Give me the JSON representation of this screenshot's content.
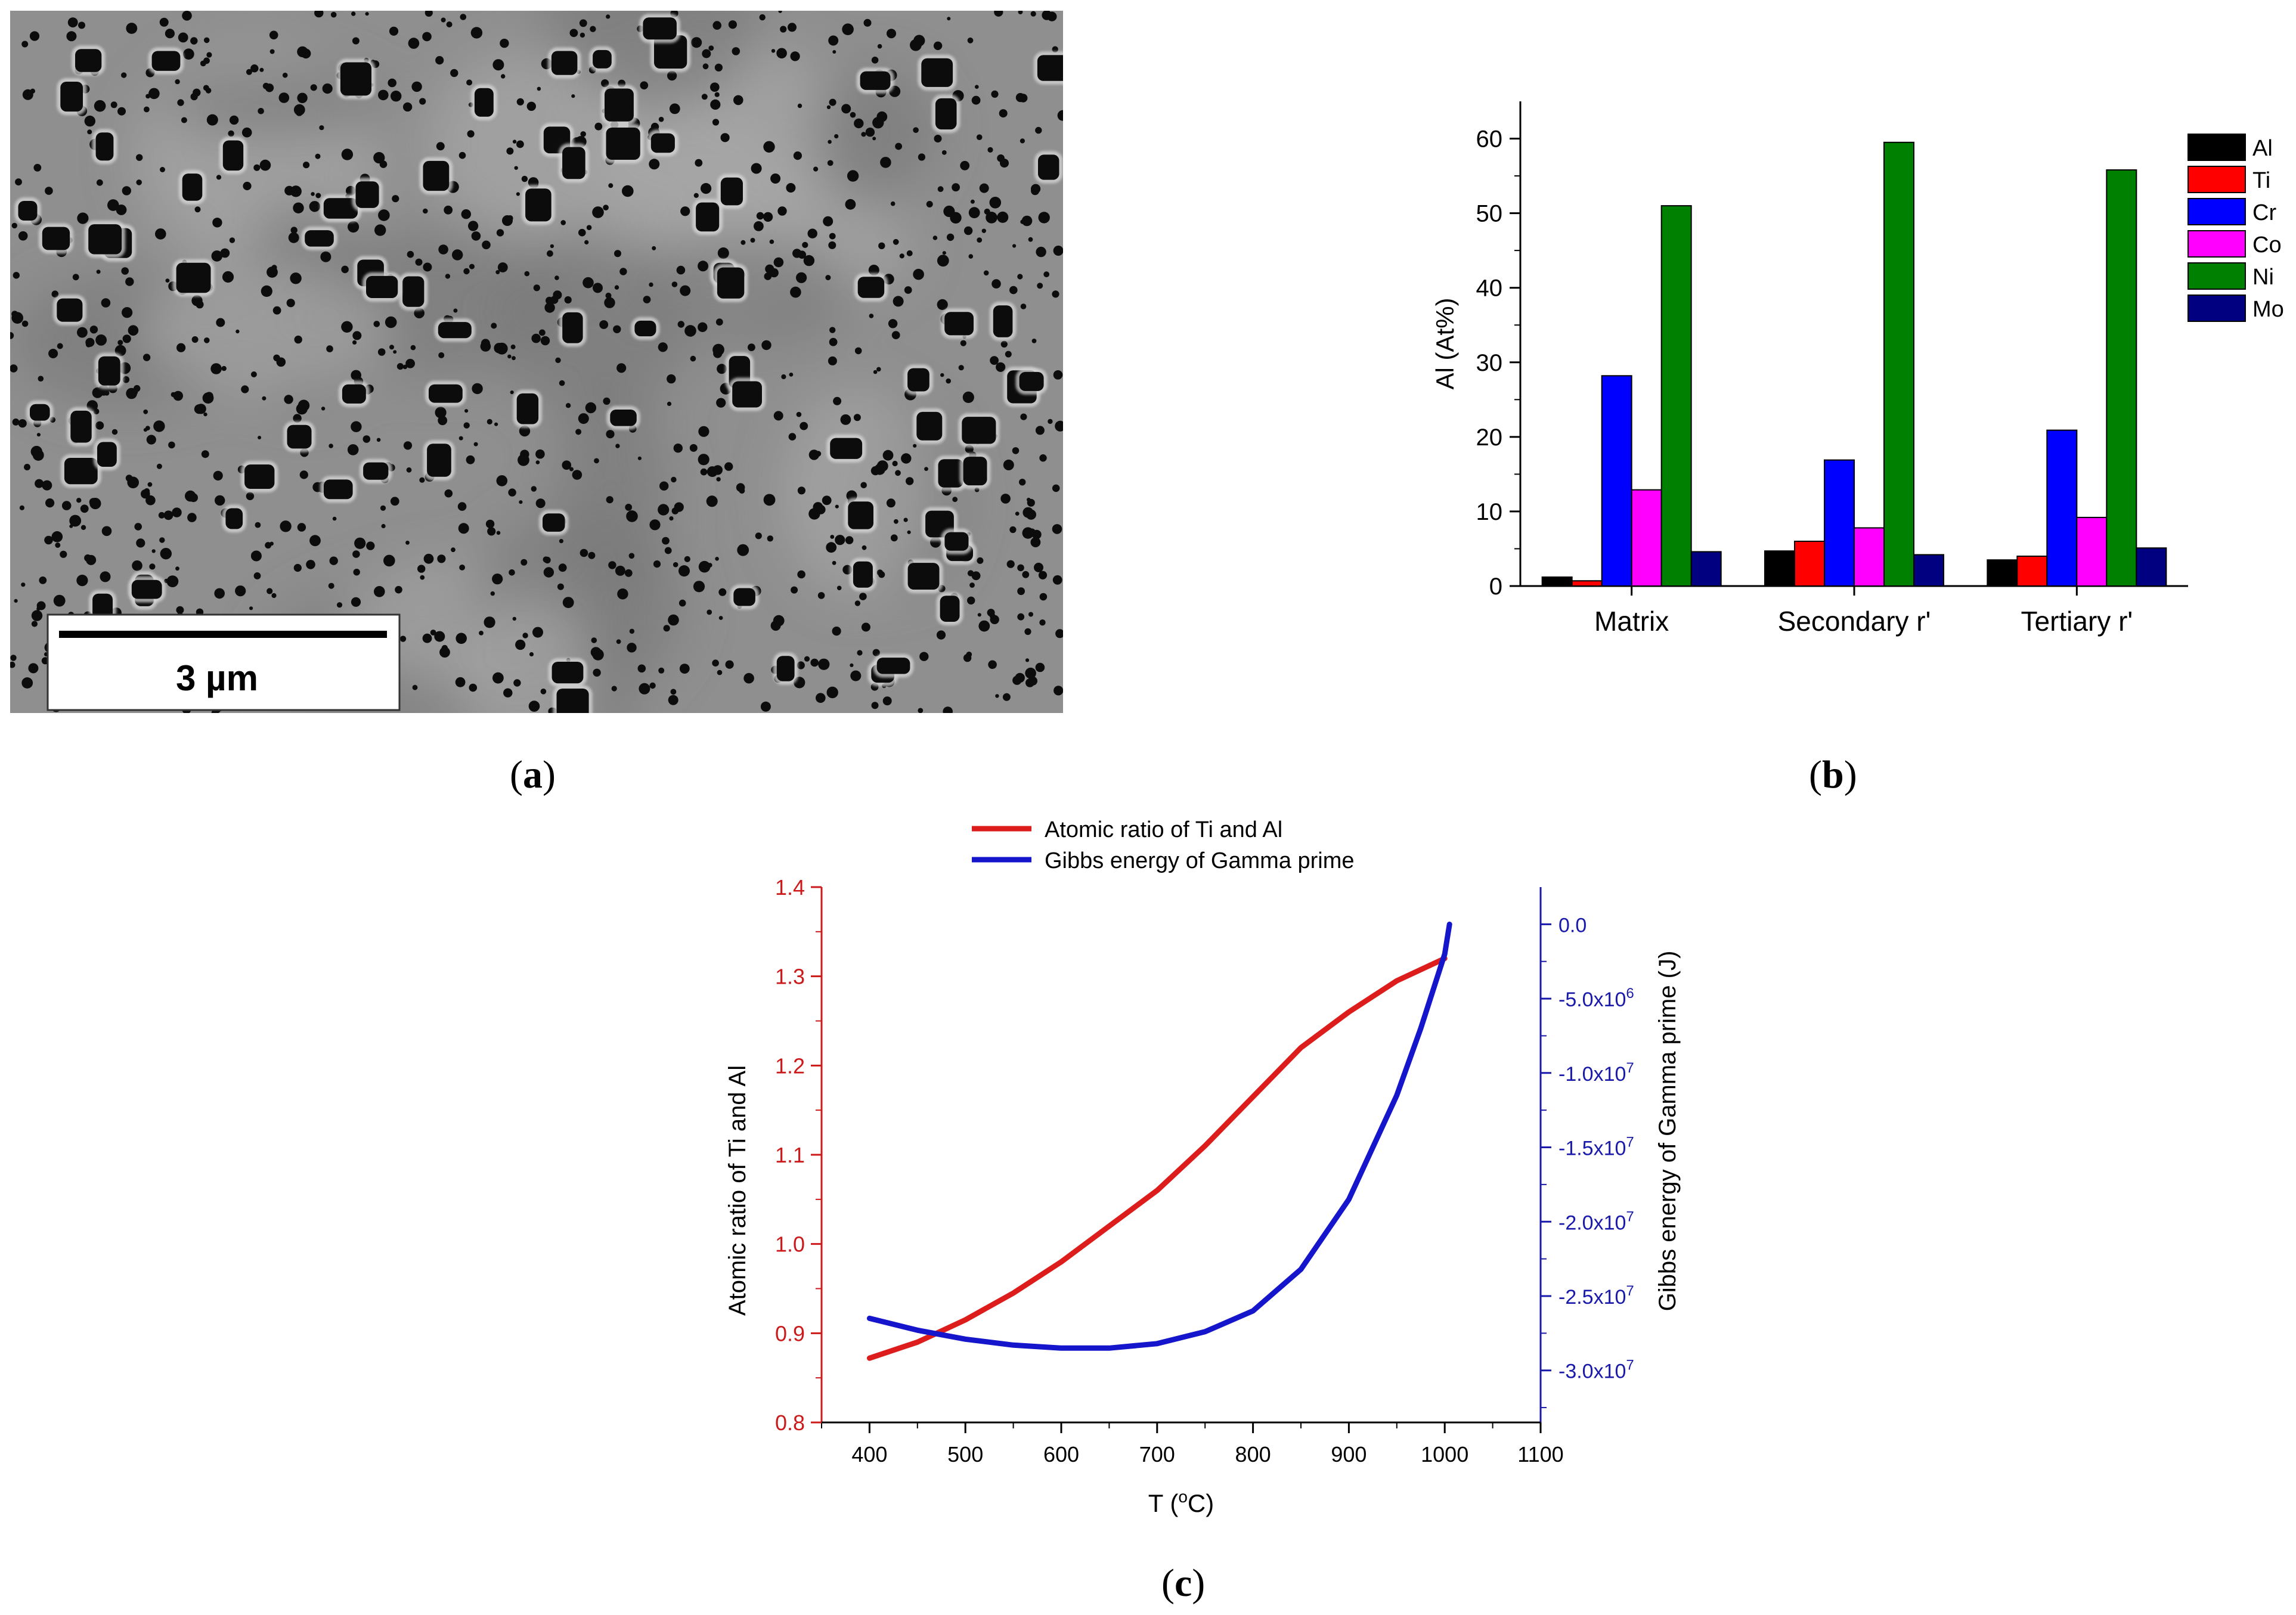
{
  "panels": {
    "a": {
      "open": "(",
      "letter": "a",
      "close": ")"
    },
    "b": {
      "open": "(",
      "letter": "b",
      "close": ")"
    },
    "c": {
      "open": "(",
      "letter": "c",
      "close": ")"
    }
  },
  "micrograph": {
    "scale_bar_label": "3 µm",
    "background_color": "#8f8f8f",
    "particle_color": "#0c0c0c"
  },
  "chart_data": [
    {
      "type": "bar",
      "ylabel": "Al (At%)",
      "ylim": [
        0,
        65
      ],
      "yticks": [
        0,
        10,
        20,
        30,
        40,
        50,
        60
      ],
      "categories": [
        "Matrix",
        "Secondary r'",
        "Tertiary r'"
      ],
      "legend_position": "top-right",
      "series": [
        {
          "name": "Al",
          "color": "#000000",
          "values": [
            1.2,
            4.7,
            3.5
          ]
        },
        {
          "name": "Ti",
          "color": "#ff0000",
          "values": [
            0.7,
            6.0,
            4.0
          ]
        },
        {
          "name": "Cr",
          "color": "#0000ff",
          "values": [
            28.2,
            16.9,
            20.9
          ]
        },
        {
          "name": "Co",
          "color": "#ff00ff",
          "values": [
            12.9,
            7.8,
            9.2
          ]
        },
        {
          "name": "Ni",
          "color": "#008000",
          "values": [
            51.0,
            59.5,
            55.8
          ]
        },
        {
          "name": "Mo",
          "color": "#000080",
          "values": [
            4.6,
            4.2,
            5.1
          ]
        }
      ]
    },
    {
      "type": "line",
      "xlabel_prefix": "T (",
      "xlabel_sup": "o",
      "xlabel_suffix": "C)",
      "xlim": [
        350,
        1100
      ],
      "xticks": [
        400,
        500,
        600,
        700,
        800,
        900,
        1000,
        1100
      ],
      "y_left": {
        "label": "Atomic ratio of Ti and Al",
        "color": "#cc1a1a",
        "ylim": [
          0.8,
          1.4
        ],
        "ticks": [
          "0.8",
          "0.9",
          "1.0",
          "1.1",
          "1.2",
          "1.3",
          "1.4"
        ]
      },
      "y_right": {
        "label": "Gibbs energy of Gamma prime (J)",
        "color": "#1a1aaa",
        "ylim": [
          -33500000,
          2500000
        ],
        "ticks": [
          {
            "value": 0,
            "mant": "0.0",
            "exp": ""
          },
          {
            "value": -5000000,
            "mant": "-5.0x10",
            "exp": "6"
          },
          {
            "value": -10000000,
            "mant": "-1.0x10",
            "exp": "7"
          },
          {
            "value": -15000000,
            "mant": "-1.5x10",
            "exp": "7"
          },
          {
            "value": -20000000,
            "mant": "-2.0x10",
            "exp": "7"
          },
          {
            "value": -25000000,
            "mant": "-2.5x10",
            "exp": "7"
          },
          {
            "value": -30000000,
            "mant": "-3.0x10",
            "exp": "7"
          }
        ]
      },
      "series": [
        {
          "name": "Atomic ratio of Ti and Al",
          "axis": "left",
          "color": "#dd1c1c",
          "x": [
            400,
            450,
            480,
            500,
            550,
            600,
            650,
            700,
            750,
            800,
            850,
            900,
            950,
            1000
          ],
          "y": [
            0.872,
            0.89,
            0.905,
            0.915,
            0.945,
            0.98,
            1.02,
            1.06,
            1.11,
            1.165,
            1.22,
            1.26,
            1.295,
            1.32
          ]
        },
        {
          "name": "Gibbs energy of Gamma prime",
          "axis": "right",
          "color": "#1515cc",
          "x": [
            400,
            450,
            500,
            550,
            600,
            650,
            700,
            750,
            800,
            850,
            900,
            950,
            975,
            1000,
            1005
          ],
          "y": [
            -26500000,
            -27300000,
            -27900000,
            -28300000,
            -28500000,
            -28500000,
            -28200000,
            -27400000,
            -26000000,
            -23200000,
            -18500000,
            -11500000,
            -7000000,
            -2000000,
            0
          ]
        }
      ]
    }
  ]
}
